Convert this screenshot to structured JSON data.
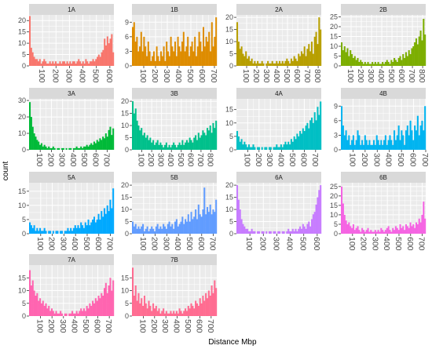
{
  "chart_data": {
    "type": "bar",
    "kind": "faceted-histogram",
    "facet_columns": 4,
    "xlabel": "Distance Mbp",
    "ylabel": "count",
    "grid": true,
    "legend": "none",
    "panel_background": "#ebebeb",
    "strip_background": "#d9d9d9",
    "grid_color": "#ffffff",
    "facets": [
      {
        "label": "1A",
        "color": "#F8766D",
        "xlim": [
          0,
          630
        ],
        "ylim": [
          0,
          22.5
        ],
        "yticks": [
          0,
          5,
          10,
          15,
          20
        ],
        "xticks": [
          "100",
          "200",
          "300",
          "400",
          "500",
          "600"
        ],
        "xtick_values": [
          100,
          200,
          300,
          400,
          500,
          600
        ],
        "values": [
          22,
          8,
          6,
          4,
          3,
          3,
          2,
          3,
          1,
          2,
          3,
          2,
          1,
          1,
          2,
          1,
          2,
          1,
          2,
          1,
          1,
          2,
          1,
          2,
          2,
          1,
          2,
          1,
          2,
          1,
          2,
          2,
          1,
          2,
          3,
          2,
          1,
          2,
          1,
          3,
          2,
          1,
          2,
          2,
          3,
          2,
          3,
          4,
          5,
          4,
          6,
          7,
          12,
          9,
          13,
          10,
          12,
          14,
          6
        ]
      },
      {
        "label": "1B",
        "color": "#DE8C00",
        "xlim": [
          0,
          720
        ],
        "ylim": [
          0,
          10.5
        ],
        "yticks": [
          0,
          3,
          6,
          9
        ],
        "xticks": [
          "100",
          "200",
          "300",
          "400",
          "500",
          "600",
          "700"
        ],
        "xtick_values": [
          100,
          200,
          300,
          400,
          500,
          600,
          700
        ],
        "values": [
          8,
          9,
          5,
          6,
          3,
          4,
          7,
          3,
          6,
          4,
          2,
          5,
          3,
          1,
          2,
          3,
          1,
          4,
          2,
          1,
          3,
          2,
          4,
          1,
          5,
          3,
          2,
          6,
          4,
          3,
          5,
          2,
          6,
          4,
          3,
          5,
          7,
          3,
          4,
          6,
          2,
          4,
          5,
          3,
          6,
          2,
          4,
          7,
          5,
          3,
          8,
          4,
          6,
          5,
          7,
          3,
          9,
          4,
          6,
          10
        ]
      },
      {
        "label": "2A",
        "color": "#B79F00",
        "xlim": [
          0,
          830
        ],
        "ylim": [
          0,
          21
        ],
        "yticks": [
          0,
          5,
          10,
          15,
          20
        ],
        "xticks": [
          "100",
          "200",
          "300",
          "400",
          "500",
          "600",
          "700",
          "800"
        ],
        "xtick_values": [
          100,
          200,
          300,
          400,
          500,
          600,
          700,
          800
        ],
        "values": [
          18,
          10,
          7,
          8,
          5,
          4,
          6,
          3,
          4,
          2,
          3,
          1,
          2,
          1,
          2,
          1,
          1,
          2,
          1,
          0,
          1,
          2,
          1,
          1,
          2,
          1,
          1,
          2,
          1,
          2,
          1,
          2,
          1,
          2,
          3,
          2,
          1,
          3,
          2,
          4,
          3,
          2,
          5,
          4,
          6,
          5,
          8,
          4,
          7,
          9,
          6,
          10,
          5,
          12,
          14,
          9,
          20,
          15
        ]
      },
      {
        "label": "2B",
        "color": "#7CAE00",
        "xlim": [
          0,
          830
        ],
        "ylim": [
          0,
          26
        ],
        "yticks": [
          0,
          5,
          10,
          15,
          20,
          25
        ],
        "xticks": [
          "100",
          "200",
          "300",
          "400",
          "500",
          "600",
          "700",
          "800"
        ],
        "xtick_values": [
          100,
          200,
          300,
          400,
          500,
          600,
          700,
          800
        ],
        "values": [
          12,
          8,
          10,
          7,
          9,
          5,
          8,
          6,
          4,
          5,
          3,
          4,
          2,
          3,
          2,
          1,
          2,
          1,
          2,
          1,
          1,
          2,
          1,
          2,
          1,
          2,
          1,
          1,
          2,
          1,
          2,
          3,
          2,
          1,
          3,
          2,
          4,
          3,
          2,
          4,
          5,
          3,
          6,
          4,
          7,
          5,
          8,
          6,
          9,
          10,
          12,
          14,
          11,
          15,
          18,
          13,
          24,
          16
        ]
      },
      {
        "label": "3A",
        "color": "#00BA38",
        "xlim": [
          0,
          760
        ],
        "ylim": [
          0,
          31
        ],
        "yticks": [
          0,
          10,
          20,
          30
        ],
        "xticks": [
          "100",
          "200",
          "300",
          "400",
          "500",
          "600",
          "700"
        ],
        "xtick_values": [
          100,
          200,
          300,
          400,
          500,
          600,
          700
        ],
        "values": [
          29,
          20,
          14,
          10,
          8,
          6,
          5,
          3,
          4,
          2,
          3,
          2,
          1,
          2,
          1,
          1,
          2,
          1,
          0,
          1,
          1,
          0,
          1,
          1,
          0,
          1,
          0,
          1,
          1,
          0,
          1,
          1,
          2,
          1,
          1,
          2,
          1,
          2,
          2,
          3,
          2,
          3,
          4,
          3,
          5,
          4,
          6,
          5,
          7,
          6,
          8,
          7,
          10,
          8,
          12,
          14,
          9,
          13
        ]
      },
      {
        "label": "3B",
        "color": "#00C08B",
        "xlim": [
          0,
          860
        ],
        "ylim": [
          0,
          21
        ],
        "yticks": [
          0,
          5,
          10,
          15,
          20
        ],
        "xticks": [
          "100",
          "200",
          "300",
          "400",
          "500",
          "600",
          "700",
          "800"
        ],
        "xtick_values": [
          100,
          200,
          300,
          400,
          500,
          600,
          700,
          800
        ],
        "values": [
          20,
          15,
          17,
          12,
          10,
          8,
          9,
          6,
          7,
          5,
          6,
          4,
          5,
          3,
          4,
          2,
          3,
          4,
          2,
          3,
          2,
          1,
          2,
          3,
          1,
          2,
          1,
          2,
          3,
          2,
          1,
          2,
          3,
          2,
          4,
          2,
          3,
          4,
          3,
          5,
          4,
          3,
          5,
          6,
          4,
          7,
          5,
          6,
          8,
          7,
          6,
          9,
          8,
          10,
          7,
          11,
          9,
          12
        ]
      },
      {
        "label": "4A",
        "color": "#00BFC4",
        "xlim": [
          0,
          750
        ],
        "ylim": [
          0,
          19
        ],
        "yticks": [
          0,
          5,
          10,
          15
        ],
        "xticks": [
          "100",
          "200",
          "300",
          "400",
          "500",
          "600",
          "700"
        ],
        "xtick_values": [
          100,
          200,
          300,
          400,
          500,
          600,
          700
        ],
        "values": [
          7,
          5,
          3,
          4,
          2,
          3,
          2,
          1,
          2,
          1,
          1,
          2,
          1,
          0,
          1,
          1,
          0,
          1,
          0,
          1,
          1,
          0,
          1,
          1,
          0,
          1,
          1,
          2,
          1,
          1,
          2,
          1,
          2,
          3,
          2,
          3,
          2,
          4,
          3,
          5,
          4,
          6,
          5,
          7,
          6,
          8,
          7,
          9,
          10,
          8,
          11,
          12,
          10,
          14,
          11,
          16,
          13,
          18
        ]
      },
      {
        "label": "4B",
        "color": "#00B4F0",
        "xlim": [
          0,
          700
        ],
        "ylim": [
          0,
          10.5
        ],
        "yticks": [
          0,
          3,
          6,
          9
        ],
        "xticks": [
          "100",
          "200",
          "300",
          "400",
          "500",
          "600",
          "700"
        ],
        "xtick_values": [
          100,
          200,
          300,
          400,
          500,
          600,
          700
        ],
        "values": [
          9,
          5,
          3,
          4,
          2,
          3,
          1,
          2,
          3,
          1,
          2,
          4,
          3,
          1,
          2,
          1,
          3,
          2,
          1,
          2,
          1,
          1,
          2,
          1,
          3,
          2,
          1,
          2,
          1,
          2,
          3,
          1,
          2,
          3,
          2,
          1,
          4,
          2,
          3,
          5,
          2,
          4,
          3,
          1,
          4,
          5,
          3,
          6,
          4,
          2,
          5,
          4,
          7,
          3,
          5,
          6,
          4,
          9
        ]
      },
      {
        "label": "5A",
        "color": "#00A9FF",
        "xlim": [
          0,
          730
        ],
        "ylim": [
          0,
          18
        ],
        "yticks": [
          0,
          5,
          10,
          15
        ],
        "xticks": [
          "100",
          "200",
          "300",
          "400",
          "500",
          "600",
          "700"
        ],
        "xtick_values": [
          100,
          200,
          300,
          400,
          500,
          600,
          700
        ],
        "values": [
          4,
          3,
          2,
          3,
          1,
          2,
          1,
          2,
          1,
          1,
          2,
          1,
          0,
          1,
          1,
          0,
          1,
          0,
          1,
          1,
          0,
          1,
          1,
          0,
          1,
          1,
          2,
          1,
          2,
          1,
          2,
          3,
          2,
          3,
          2,
          4,
          3,
          2,
          4,
          3,
          5,
          3,
          4,
          5,
          6,
          4,
          5,
          7,
          5,
          8,
          6,
          9,
          7,
          10,
          8,
          12,
          9,
          16
        ]
      },
      {
        "label": "5B",
        "color": "#619CFF",
        "xlim": [
          0,
          730
        ],
        "ylim": [
          0,
          21
        ],
        "yticks": [
          0,
          5,
          10,
          15,
          20
        ],
        "xticks": [
          "100",
          "200",
          "300",
          "400",
          "500",
          "600",
          "700"
        ],
        "xtick_values": [
          100,
          200,
          300,
          400,
          500,
          600,
          700
        ],
        "values": [
          5,
          3,
          4,
          2,
          3,
          2,
          3,
          4,
          1,
          2,
          3,
          1,
          2,
          3,
          2,
          1,
          3,
          4,
          2,
          3,
          2,
          4,
          3,
          2,
          4,
          5,
          3,
          4,
          2,
          5,
          6,
          3,
          4,
          5,
          7,
          4,
          6,
          5,
          8,
          5,
          9,
          6,
          7,
          10,
          6,
          12,
          8,
          7,
          10,
          19,
          8,
          11,
          9,
          12,
          8,
          10,
          9,
          14
        ]
      },
      {
        "label": "6A",
        "color": "#C77CFF",
        "xlim": [
          0,
          630
        ],
        "ylim": [
          0,
          21
        ],
        "yticks": [
          0,
          5,
          10,
          15,
          20
        ],
        "xticks": [
          "100",
          "200",
          "300",
          "400",
          "500",
          "600"
        ],
        "xtick_values": [
          100,
          200,
          300,
          400,
          500,
          600
        ],
        "values": [
          20,
          14,
          10,
          6,
          4,
          3,
          2,
          2,
          1,
          1,
          2,
          1,
          1,
          0,
          1,
          1,
          0,
          1,
          1,
          0,
          1,
          0,
          1,
          1,
          0,
          1,
          1,
          0,
          1,
          1,
          0,
          1,
          1,
          0,
          1,
          2,
          1,
          1,
          2,
          1,
          2,
          1,
          2,
          3,
          2,
          4,
          3,
          2,
          4,
          5,
          3,
          6,
          8,
          9,
          12,
          15,
          18,
          20
        ]
      },
      {
        "label": "6B",
        "color": "#F564E3",
        "xlim": [
          0,
          730
        ],
        "ylim": [
          0,
          27
        ],
        "yticks": [
          0,
          5,
          10,
          15,
          20,
          25
        ],
        "xticks": [
          "100",
          "200",
          "300",
          "400",
          "500",
          "600",
          "700"
        ],
        "xtick_values": [
          100,
          200,
          300,
          400,
          500,
          600,
          700
        ],
        "values": [
          25,
          16,
          10,
          7,
          5,
          6,
          4,
          3,
          5,
          2,
          3,
          4,
          2,
          1,
          3,
          2,
          1,
          2,
          3,
          1,
          2,
          1,
          1,
          2,
          1,
          2,
          1,
          3,
          2,
          1,
          2,
          3,
          4,
          2,
          1,
          3,
          2,
          4,
          3,
          2,
          5,
          3,
          4,
          2,
          5,
          4,
          3,
          6,
          4,
          5,
          3,
          6,
          5,
          8,
          6,
          10,
          17,
          8
        ]
      },
      {
        "label": "7A",
        "color": "#FF64B0",
        "xlim": [
          0,
          740
        ],
        "ylim": [
          0,
          20
        ],
        "yticks": [
          0,
          5,
          10,
          15
        ],
        "xticks": [
          "100",
          "200",
          "300",
          "400",
          "500",
          "600",
          "700"
        ],
        "xtick_values": [
          100,
          200,
          300,
          400,
          500,
          600,
          700
        ],
        "values": [
          18,
          12,
          14,
          10,
          8,
          9,
          6,
          7,
          5,
          6,
          4,
          5,
          3,
          4,
          2,
          3,
          2,
          1,
          2,
          1,
          1,
          2,
          1,
          0,
          1,
          1,
          0,
          1,
          1,
          2,
          1,
          1,
          2,
          1,
          2,
          3,
          2,
          3,
          2,
          4,
          3,
          5,
          4,
          6,
          5,
          7,
          6,
          8,
          7,
          9,
          8,
          11,
          13,
          9,
          12,
          15,
          10,
          14
        ]
      },
      {
        "label": "7B",
        "color": "#FF6C91",
        "xlim": [
          0,
          750
        ],
        "ylim": [
          0,
          20
        ],
        "yticks": [
          0,
          5,
          10,
          15
        ],
        "xticks": [
          "100",
          "200",
          "300",
          "400",
          "500",
          "600",
          "700"
        ],
        "xtick_values": [
          100,
          200,
          300,
          400,
          500,
          600,
          700
        ],
        "values": [
          19,
          8,
          12,
          6,
          9,
          5,
          7,
          4,
          8,
          5,
          3,
          6,
          4,
          2,
          5,
          3,
          4,
          2,
          3,
          1,
          2,
          3,
          1,
          2,
          1,
          1,
          2,
          1,
          2,
          1,
          2,
          1,
          3,
          2,
          1,
          2,
          3,
          2,
          4,
          3,
          5,
          4,
          3,
          6,
          5,
          4,
          7,
          5,
          8,
          6,
          9,
          7,
          10,
          8,
          12,
          9,
          14,
          11
        ]
      }
    ]
  }
}
